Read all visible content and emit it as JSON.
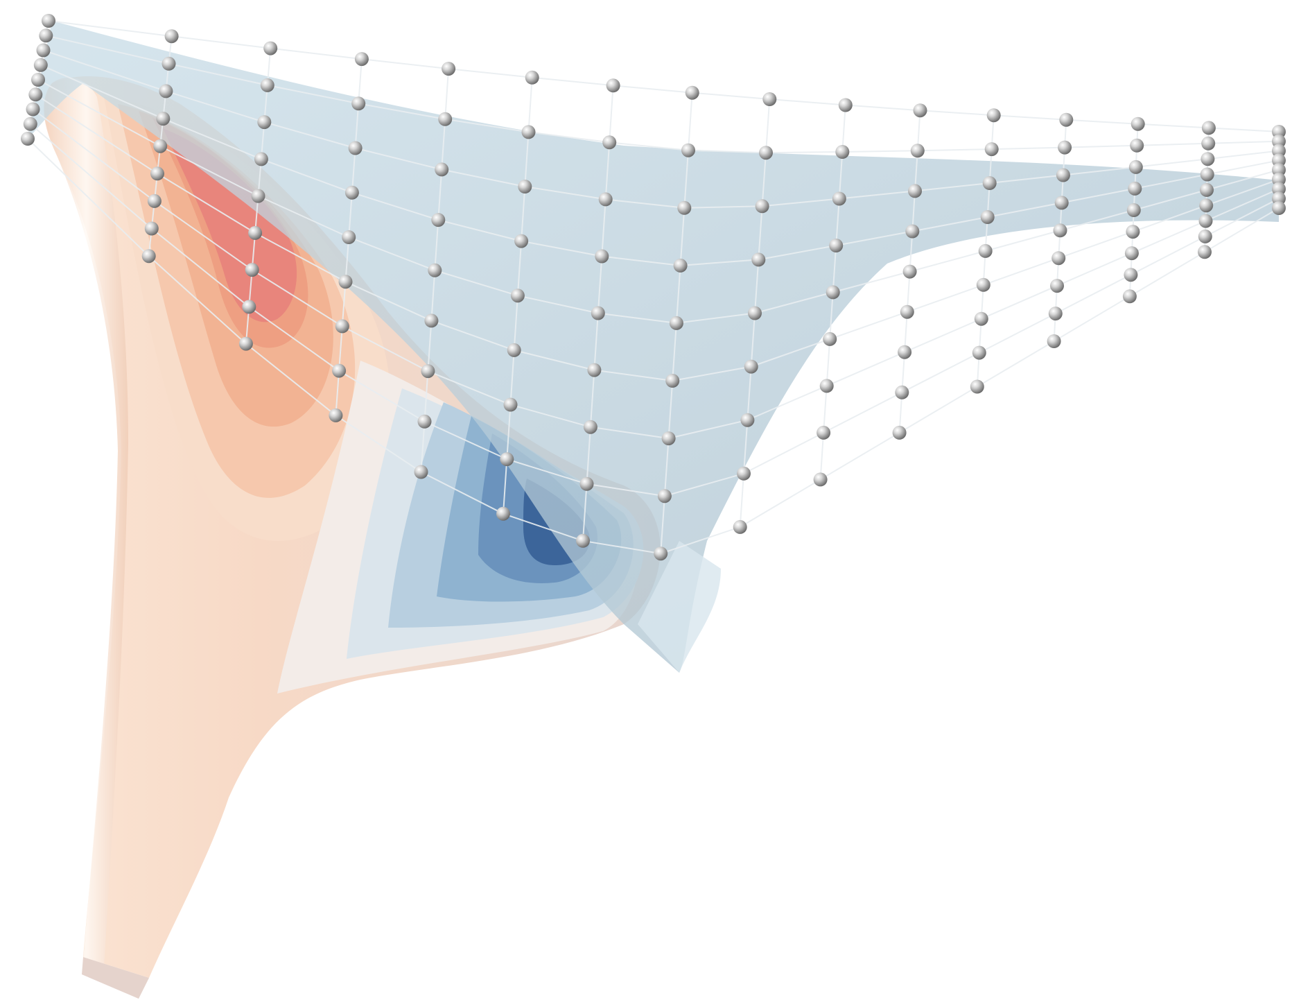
{
  "figure": {
    "kind": "3D rendering of a curved surface with contour coloring and a control-point lattice",
    "text_labels": []
  },
  "colors": {
    "background": "#ffffff",
    "warm_peak": "#e8807a",
    "warm_mid": "#f0a58a",
    "warm_light": "#f6cdb5",
    "neutral": "#f7efea",
    "cool_light": "#cfdde8",
    "cool_mid": "#7fa7c9",
    "cool_peak": "#3a6496",
    "lattice_fill": "#bcd6e4",
    "lattice_line": "#e6ecef",
    "node": "#8c8c8c"
  }
}
